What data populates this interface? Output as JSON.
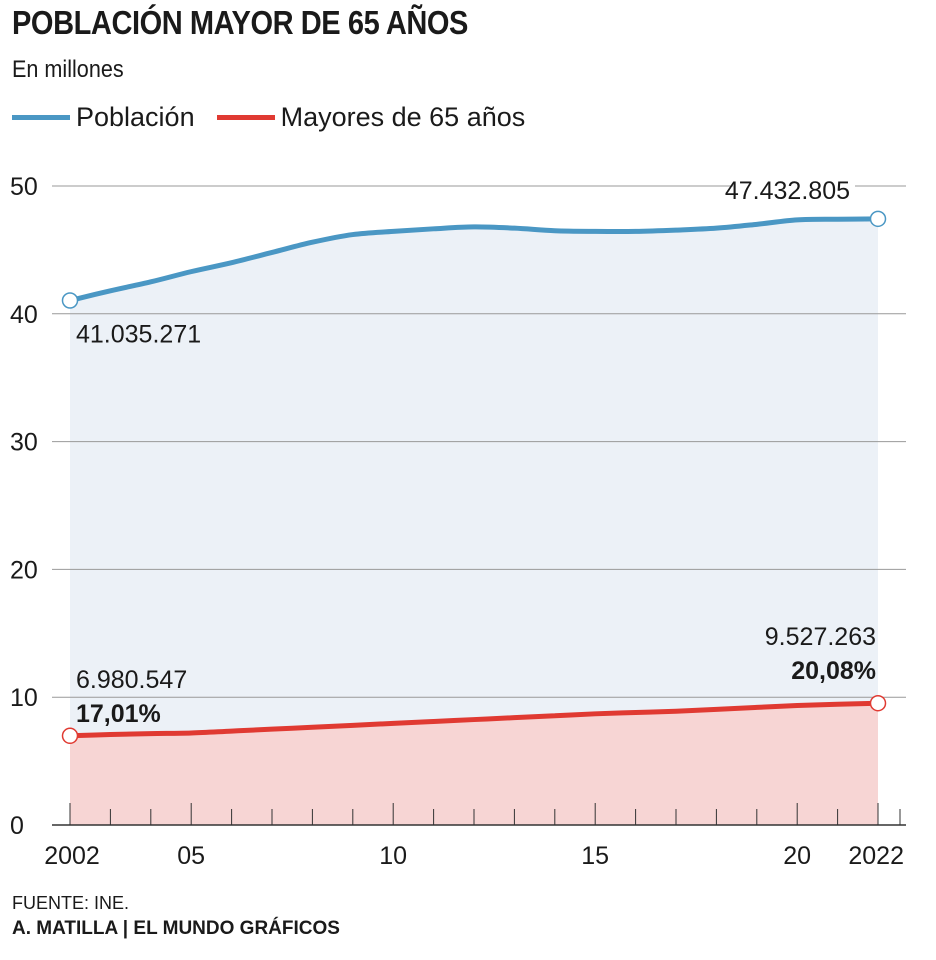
{
  "header": {
    "title": "POBLACIÓN MAYOR DE 65 AÑOS",
    "subtitle": "En millones"
  },
  "colors": {
    "poblacion": "#4a97c4",
    "mayores": "#e03a32",
    "poblacion_fill": "#ecf1f7",
    "mayores_fill": "#f7d5d4",
    "grid": "#999999",
    "axis": "#333333"
  },
  "chart_data": {
    "type": "area",
    "title": "POBLACIÓN MAYOR DE 65 AÑOS",
    "subtitle": "En millones",
    "xlabel": "",
    "ylabel": "",
    "x": [
      2002,
      2003,
      2004,
      2005,
      2006,
      2007,
      2008,
      2009,
      2010,
      2011,
      2012,
      2013,
      2014,
      2015,
      2016,
      2017,
      2018,
      2019,
      2020,
      2021,
      2022
    ],
    "x_tick_values": [
      2002,
      2005,
      2010,
      2015,
      2020,
      2022
    ],
    "x_tick_labels": [
      "2002",
      "05",
      "10",
      "15",
      "20",
      "2022"
    ],
    "ylim": [
      0,
      50
    ],
    "y_ticks": [
      0,
      10,
      20,
      30,
      40,
      50
    ],
    "y_tick_labels": [
      "0",
      "10",
      "20",
      "30",
      "40",
      "50"
    ],
    "grid": true,
    "legend": "top-left",
    "series": [
      {
        "name": "Población",
        "values": [
          41.04,
          41.8,
          42.5,
          43.3,
          44.0,
          44.8,
          45.6,
          46.2,
          46.45,
          46.65,
          46.8,
          46.7,
          46.5,
          46.45,
          46.45,
          46.55,
          46.7,
          47.0,
          47.35,
          47.4,
          47.43
        ],
        "annotations": [
          {
            "x": 2002,
            "label": "41.035.271"
          },
          {
            "x": 2022,
            "label": "47.432.805"
          }
        ]
      },
      {
        "name": "Mayores de 65 años",
        "values": [
          6.98,
          7.08,
          7.15,
          7.2,
          7.35,
          7.5,
          7.65,
          7.8,
          7.95,
          8.1,
          8.25,
          8.4,
          8.55,
          8.7,
          8.8,
          8.9,
          9.05,
          9.2,
          9.35,
          9.45,
          9.53
        ],
        "annotations": [
          {
            "x": 2002,
            "label": "6.980.547",
            "label_bold": "17,01%"
          },
          {
            "x": 2022,
            "label": "9.527.263",
            "label_bold": "20,08%"
          }
        ]
      }
    ]
  },
  "footer": {
    "source": "FUENTE: INE.",
    "credit": "A. MATILLA | EL MUNDO GRÁFICOS"
  }
}
